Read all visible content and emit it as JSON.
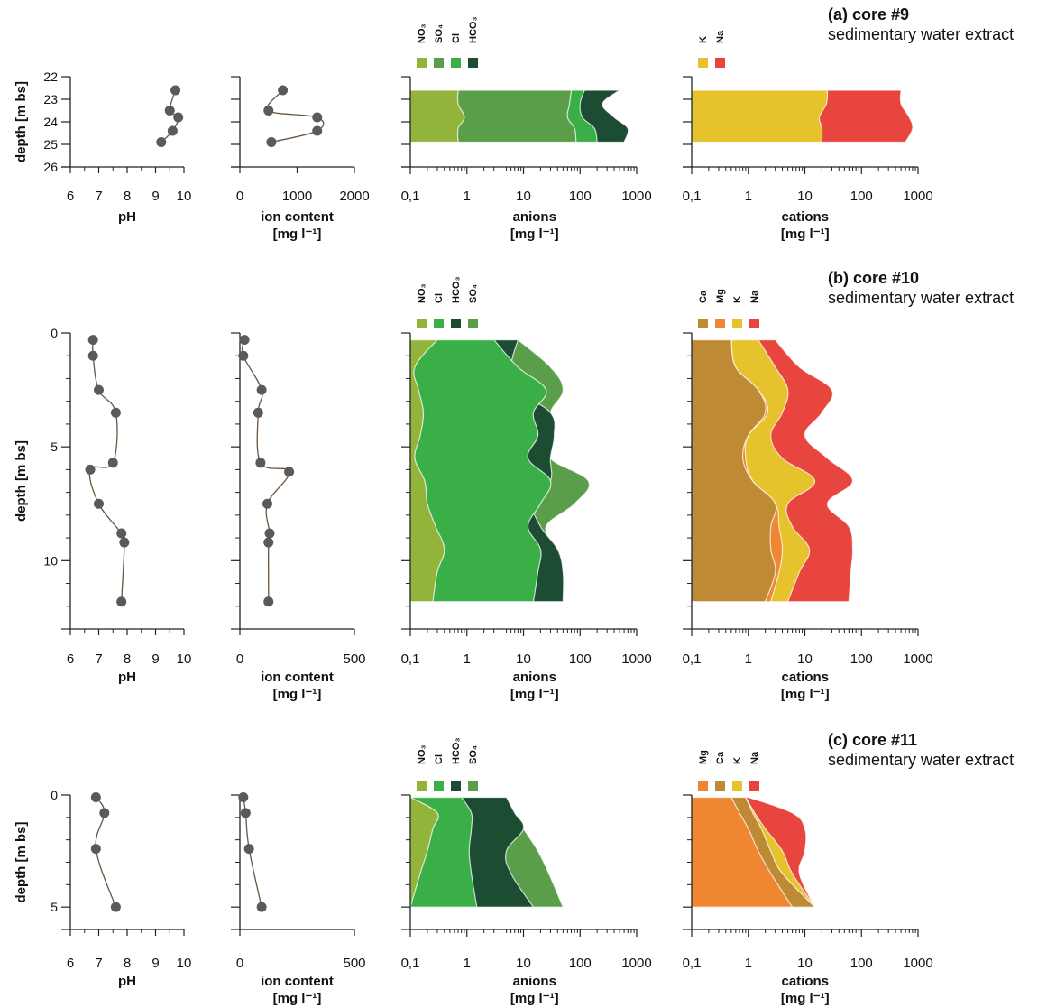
{
  "colors": {
    "NO3": "#93b43a",
    "SO4": "#5a9e4a",
    "Cl": "#3aaf48",
    "HCO3": "#1c4d32",
    "K": "#e6c22c",
    "Na": "#e8453f",
    "Ca": "#bf8a34",
    "Mg": "#ef8632",
    "point": "#5a5a5a",
    "line": "#6b5540"
  },
  "common": {
    "ph_label": "pH",
    "ion_label": "ion content",
    "ion_unit": "[mg l⁻¹]",
    "anion_label": "anions",
    "anion_unit": "[mg l⁻¹]",
    "cation_label": "cations",
    "cation_unit": "[mg l⁻¹]",
    "depth_label": "depth [m bs]",
    "log_ticks": [
      "0,1",
      "1",
      "10",
      "100",
      "1000"
    ]
  },
  "chart_data": [
    {
      "title": "(a) core #9",
      "subtitle": "sedimentary water extract",
      "depth_range": [
        22,
        26
      ],
      "depth_ticks": [
        "22",
        "23",
        "24",
        "25",
        "26"
      ],
      "depth_tick_values": [
        22,
        23,
        24,
        25,
        26
      ],
      "ph": {
        "type": "line",
        "xlim": [
          6,
          10
        ],
        "ticks": [
          "6",
          "7",
          "8",
          "9",
          "10"
        ],
        "points": [
          [
            9.7,
            22.6
          ],
          [
            9.5,
            23.5
          ],
          [
            9.8,
            23.8
          ],
          [
            9.6,
            24.4
          ],
          [
            9.2,
            24.9
          ]
        ]
      },
      "ion": {
        "type": "line",
        "xlim": [
          0,
          2000
        ],
        "ticks": [
          "0",
          "1000",
          "2000"
        ],
        "tick_values": [
          0,
          1000,
          2000
        ],
        "points": [
          [
            750,
            22.6
          ],
          [
            500,
            23.5
          ],
          [
            1350,
            23.8
          ],
          [
            1350,
            24.4
          ],
          [
            550,
            24.9
          ]
        ]
      },
      "anions": {
        "type": "area",
        "legend": [
          "NO₃",
          "SO₄",
          "Cl",
          "HCO₃"
        ],
        "legend_keys": [
          "NO3",
          "SO4",
          "Cl",
          "HCO3"
        ],
        "depths": [
          22.6,
          23.2,
          23.8,
          24.3,
          24.9
        ],
        "series": [
          {
            "key": "NO3",
            "values": [
              0.7,
              0.7,
              0.9,
              0.7,
              0.7
            ]
          },
          {
            "key": "SO4",
            "values": [
              70,
              65,
              60,
              80,
              85
            ]
          },
          {
            "key": "Cl",
            "values": [
              120,
              100,
              110,
              180,
              200
            ]
          },
          {
            "key": "HCO3",
            "values": [
              500,
              250,
              400,
              700,
              600
            ]
          }
        ]
      },
      "cations": {
        "type": "area",
        "legend": [
          "K",
          "Na"
        ],
        "legend_keys": [
          "K",
          "Na"
        ],
        "depths": [
          22.6,
          23.2,
          23.8,
          24.3,
          24.9
        ],
        "series": [
          {
            "key": "K",
            "values": [
              25,
              24,
              18,
              20,
              20
            ]
          },
          {
            "key": "Na",
            "values": [
              500,
              500,
              700,
              800,
              600
            ]
          }
        ]
      }
    },
    {
      "title": "(b) core #10",
      "subtitle": "sedimentary water extract",
      "depth_range": [
        0,
        13
      ],
      "depth_ticks": [
        "0",
        "5",
        "10"
      ],
      "depth_tick_values": [
        0,
        5,
        10
      ],
      "ph": {
        "type": "line",
        "xlim": [
          6,
          10
        ],
        "ticks": [
          "6",
          "7",
          "8",
          "9",
          "10"
        ],
        "points": [
          [
            6.8,
            0.3
          ],
          [
            6.8,
            1.0
          ],
          [
            7.0,
            2.5
          ],
          [
            7.6,
            3.5
          ],
          [
            7.5,
            5.7
          ],
          [
            6.7,
            6.0
          ],
          [
            7.0,
            7.5
          ],
          [
            7.8,
            8.8
          ],
          [
            7.9,
            9.2
          ],
          [
            7.8,
            11.8
          ]
        ]
      },
      "ion": {
        "type": "line",
        "xlim": [
          0,
          500
        ],
        "ticks": [
          "0",
          "500"
        ],
        "tick_values": [
          0,
          500
        ],
        "points": [
          [
            20,
            0.3
          ],
          [
            15,
            1.0
          ],
          [
            95,
            2.5
          ],
          [
            80,
            3.5
          ],
          [
            90,
            5.7
          ],
          [
            215,
            6.1
          ],
          [
            120,
            7.5
          ],
          [
            130,
            8.8
          ],
          [
            125,
            9.2
          ],
          [
            125,
            11.8
          ]
        ]
      },
      "anions": {
        "type": "area",
        "legend": [
          "NO₃",
          "Cl",
          "HCO₃",
          "SO₄"
        ],
        "legend_keys": [
          "NO3",
          "Cl",
          "HCO3",
          "SO4"
        ],
        "depths": [
          0.3,
          1.5,
          2.5,
          3.5,
          4.5,
          5.5,
          6.5,
          7.5,
          8.5,
          9.5,
          10.5,
          11.8
        ],
        "series": [
          {
            "key": "NO3",
            "values": [
              0.3,
              0.12,
              0.14,
              0.17,
              0.15,
              0.12,
              0.18,
              0.2,
              0.28,
              0.4,
              0.3,
              0.25
            ]
          },
          {
            "key": "Cl",
            "values": [
              3,
              8,
              25,
              15,
              18,
              12,
              30,
              20,
              12,
              20,
              18,
              15
            ]
          },
          {
            "key": "HCO3",
            "values": [
              8,
              6,
              8,
              30,
              35,
              30,
              30,
              15,
              20,
              40,
              50,
              50
            ]
          },
          {
            "key": "SO4",
            "values": [
              8,
              30,
              50,
              30,
              35,
              30,
              140,
              80,
              25,
              40,
              50,
              50
            ]
          }
        ]
      },
      "cations": {
        "type": "area",
        "legend": [
          "Ca",
          "Mg",
          "K",
          "Na"
        ],
        "legend_keys": [
          "Ca",
          "Mg",
          "K",
          "Na"
        ],
        "depths": [
          0.3,
          1.5,
          2.5,
          3.5,
          4.5,
          5.5,
          6.5,
          7.5,
          8.5,
          9.5,
          10.5,
          11.8
        ],
        "series": [
          {
            "key": "Ca",
            "values": [
              0.5,
              0.6,
              1.5,
              2.0,
              1.0,
              0.8,
              1.2,
              3.0,
              2.5,
              2.5,
              3.0,
              2.0
            ]
          },
          {
            "key": "Mg",
            "values": [
              0.5,
              0.6,
              1.5,
              2.2,
              1.0,
              0.9,
              1.2,
              3.0,
              3.5,
              4.0,
              3.5,
              2.5
            ]
          },
          {
            "key": "K",
            "values": [
              1.5,
              3.0,
              5.0,
              4.0,
              2.5,
              4.0,
              15,
              5.0,
              6.0,
              12,
              8.0,
              5.0
            ]
          },
          {
            "key": "Na",
            "values": [
              3.0,
              8.0,
              30,
              20,
              10,
              25,
              70,
              25,
              60,
              70,
              65,
              60
            ]
          }
        ]
      }
    },
    {
      "title": "(c) core #11",
      "subtitle": "sedimentary water extract",
      "depth_range": [
        0,
        6
      ],
      "depth_ticks": [
        "0",
        "5"
      ],
      "depth_tick_values": [
        0,
        5
      ],
      "ph": {
        "type": "line",
        "xlim": [
          6,
          10
        ],
        "ticks": [
          "6",
          "7",
          "8",
          "9",
          "10"
        ],
        "points": [
          [
            6.9,
            0.1
          ],
          [
            7.2,
            0.8
          ],
          [
            6.9,
            2.4
          ],
          [
            7.6,
            5.0
          ]
        ]
      },
      "ion": {
        "type": "line",
        "xlim": [
          0,
          500
        ],
        "ticks": [
          "0",
          "500"
        ],
        "tick_values": [
          0,
          500
        ],
        "points": [
          [
            15,
            0.1
          ],
          [
            25,
            0.8
          ],
          [
            40,
            2.4
          ],
          [
            95,
            5.0
          ]
        ]
      },
      "anions": {
        "type": "area",
        "legend": [
          "NO₃",
          "Cl",
          "HCO₃",
          "SO₄"
        ],
        "legend_keys": [
          "NO3",
          "Cl",
          "HCO3",
          "SO4"
        ],
        "depths": [
          0.1,
          0.8,
          1.5,
          2.5,
          3.5,
          5.0
        ],
        "series": [
          {
            "key": "NO3",
            "values": [
              0.1,
              0.3,
              0.25,
              0.2,
              0.15,
              0.1
            ]
          },
          {
            "key": "Cl",
            "values": [
              0.8,
              1.2,
              1.2,
              1.1,
              1.2,
              1.5
            ]
          },
          {
            "key": "HCO3",
            "values": [
              5,
              7,
              10,
              5,
              6,
              15
            ]
          },
          {
            "key": "SO4",
            "values": [
              5,
              7,
              10,
              18,
              28,
              50
            ]
          }
        ]
      },
      "cations": {
        "type": "area",
        "legend": [
          "Mg",
          "Ca",
          "K",
          "Na"
        ],
        "legend_keys": [
          "Mg",
          "Ca",
          "K",
          "Na"
        ],
        "depths": [
          0.1,
          0.8,
          1.5,
          2.5,
          3.5,
          5.0
        ],
        "series": [
          {
            "key": "Mg",
            "values": [
              0.5,
              0.7,
              1.0,
              1.5,
              2.5,
              6.0
            ]
          },
          {
            "key": "Ca",
            "values": [
              0.9,
              1.2,
              1.7,
              2.5,
              4.0,
              15
            ]
          },
          {
            "key": "K",
            "values": [
              0.9,
              1.3,
              2.0,
              4.0,
              6.0,
              15
            ]
          },
          {
            "key": "Na",
            "values": [
              1.0,
              6.0,
              10,
              10,
              8.0,
              15
            ]
          }
        ]
      }
    }
  ]
}
